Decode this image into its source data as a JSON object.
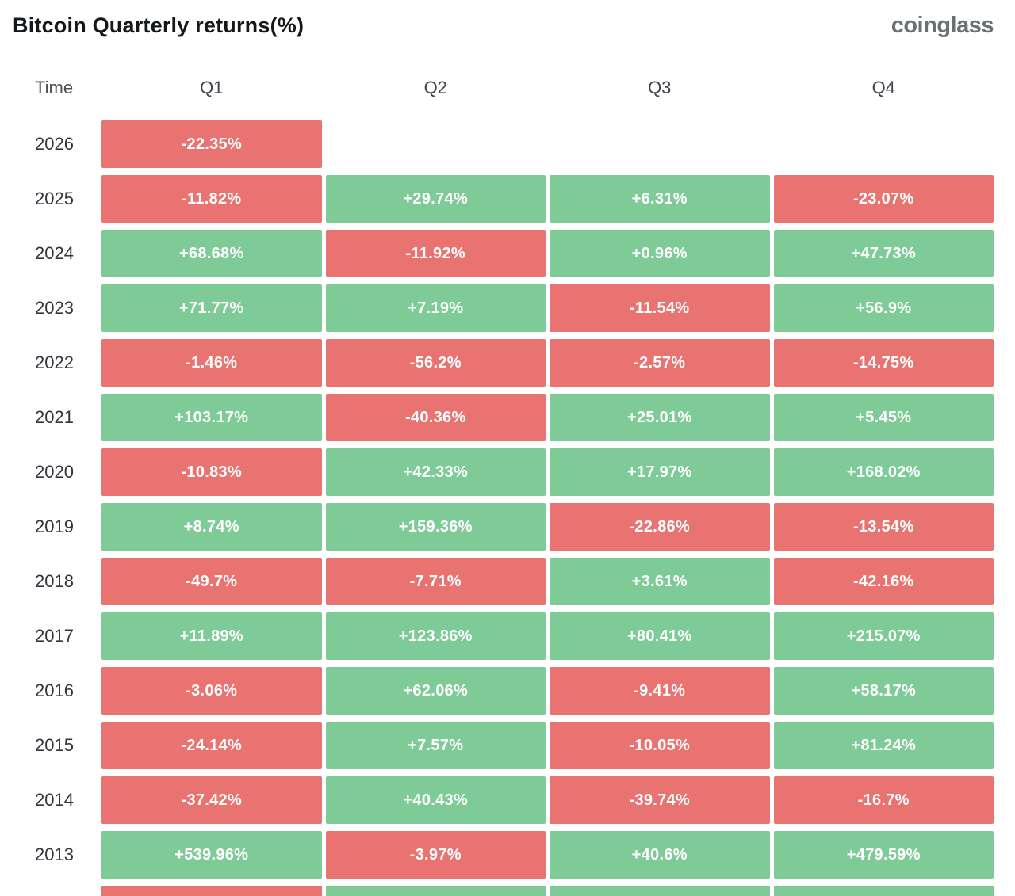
{
  "page": {
    "background": "#ffffff"
  },
  "header": {
    "title": "Bitcoin Quarterly returns(%)",
    "brand": "coinglass"
  },
  "colors": {
    "positive": "#7ecb98",
    "negative": "#e97370"
  },
  "table": {
    "columns": [
      "Time",
      "Q1",
      "Q2",
      "Q3",
      "Q4"
    ],
    "rows": [
      {
        "year": "2026",
        "cells": [
          {
            "text": "-22.35%",
            "sign": "neg"
          },
          null,
          null,
          null
        ]
      },
      {
        "year": "2025",
        "cells": [
          {
            "text": "-11.82%",
            "sign": "neg"
          },
          {
            "text": "+29.74%",
            "sign": "pos"
          },
          {
            "text": "+6.31%",
            "sign": "pos"
          },
          {
            "text": "-23.07%",
            "sign": "neg"
          }
        ]
      },
      {
        "year": "2024",
        "cells": [
          {
            "text": "+68.68%",
            "sign": "pos"
          },
          {
            "text": "-11.92%",
            "sign": "neg"
          },
          {
            "text": "+0.96%",
            "sign": "pos"
          },
          {
            "text": "+47.73%",
            "sign": "pos"
          }
        ]
      },
      {
        "year": "2023",
        "cells": [
          {
            "text": "+71.77%",
            "sign": "pos"
          },
          {
            "text": "+7.19%",
            "sign": "pos"
          },
          {
            "text": "-11.54%",
            "sign": "neg"
          },
          {
            "text": "+56.9%",
            "sign": "pos"
          }
        ]
      },
      {
        "year": "2022",
        "cells": [
          {
            "text": "-1.46%",
            "sign": "neg"
          },
          {
            "text": "-56.2%",
            "sign": "neg"
          },
          {
            "text": "-2.57%",
            "sign": "neg"
          },
          {
            "text": "-14.75%",
            "sign": "neg"
          }
        ]
      },
      {
        "year": "2021",
        "cells": [
          {
            "text": "+103.17%",
            "sign": "pos"
          },
          {
            "text": "-40.36%",
            "sign": "neg"
          },
          {
            "text": "+25.01%",
            "sign": "pos"
          },
          {
            "text": "+5.45%",
            "sign": "pos"
          }
        ]
      },
      {
        "year": "2020",
        "cells": [
          {
            "text": "-10.83%",
            "sign": "neg"
          },
          {
            "text": "+42.33%",
            "sign": "pos"
          },
          {
            "text": "+17.97%",
            "sign": "pos"
          },
          {
            "text": "+168.02%",
            "sign": "pos"
          }
        ]
      },
      {
        "year": "2019",
        "cells": [
          {
            "text": "+8.74%",
            "sign": "pos"
          },
          {
            "text": "+159.36%",
            "sign": "pos"
          },
          {
            "text": "-22.86%",
            "sign": "neg"
          },
          {
            "text": "-13.54%",
            "sign": "neg"
          }
        ]
      },
      {
        "year": "2018",
        "cells": [
          {
            "text": "-49.7%",
            "sign": "neg"
          },
          {
            "text": "-7.71%",
            "sign": "neg"
          },
          {
            "text": "+3.61%",
            "sign": "pos"
          },
          {
            "text": "-42.16%",
            "sign": "neg"
          }
        ]
      },
      {
        "year": "2017",
        "cells": [
          {
            "text": "+11.89%",
            "sign": "pos"
          },
          {
            "text": "+123.86%",
            "sign": "pos"
          },
          {
            "text": "+80.41%",
            "sign": "pos"
          },
          {
            "text": "+215.07%",
            "sign": "pos"
          }
        ]
      },
      {
        "year": "2016",
        "cells": [
          {
            "text": "-3.06%",
            "sign": "neg"
          },
          {
            "text": "+62.06%",
            "sign": "pos"
          },
          {
            "text": "-9.41%",
            "sign": "neg"
          },
          {
            "text": "+58.17%",
            "sign": "pos"
          }
        ]
      },
      {
        "year": "2015",
        "cells": [
          {
            "text": "-24.14%",
            "sign": "neg"
          },
          {
            "text": "+7.57%",
            "sign": "pos"
          },
          {
            "text": "-10.05%",
            "sign": "neg"
          },
          {
            "text": "+81.24%",
            "sign": "pos"
          }
        ]
      },
      {
        "year": "2014",
        "cells": [
          {
            "text": "-37.42%",
            "sign": "neg"
          },
          {
            "text": "+40.43%",
            "sign": "pos"
          },
          {
            "text": "-39.74%",
            "sign": "neg"
          },
          {
            "text": "-16.7%",
            "sign": "neg"
          }
        ]
      },
      {
        "year": "2013",
        "cells": [
          {
            "text": "+539.96%",
            "sign": "pos"
          },
          {
            "text": "-3.97%",
            "sign": "neg"
          },
          {
            "text": "+40.6%",
            "sign": "pos"
          },
          {
            "text": "+479.59%",
            "sign": "pos"
          }
        ]
      }
    ],
    "partial_row": {
      "year": "",
      "cells": [
        {
          "text": "",
          "sign": "neg"
        },
        {
          "text": "",
          "sign": "pos"
        },
        {
          "text": "",
          "sign": "pos"
        },
        {
          "text": "",
          "sign": "pos"
        }
      ]
    }
  },
  "chart_data": {
    "type": "heatmap",
    "title": "Bitcoin Quarterly returns(%)",
    "columns": [
      "Q1",
      "Q2",
      "Q3",
      "Q4"
    ],
    "rows": [
      "2026",
      "2025",
      "2024",
      "2023",
      "2022",
      "2021",
      "2020",
      "2019",
      "2018",
      "2017",
      "2016",
      "2015",
      "2014",
      "2013"
    ],
    "values": [
      [
        -22.35,
        null,
        null,
        null
      ],
      [
        -11.82,
        29.74,
        6.31,
        -23.07
      ],
      [
        68.68,
        -11.92,
        0.96,
        47.73
      ],
      [
        71.77,
        7.19,
        -11.54,
        56.9
      ],
      [
        -1.46,
        -56.2,
        -2.57,
        -14.75
      ],
      [
        103.17,
        -40.36,
        25.01,
        5.45
      ],
      [
        -10.83,
        42.33,
        17.97,
        168.02
      ],
      [
        8.74,
        159.36,
        -22.86,
        -13.54
      ],
      [
        -49.7,
        -7.71,
        3.61,
        -42.16
      ],
      [
        11.89,
        123.86,
        80.41,
        215.07
      ],
      [
        -3.06,
        62.06,
        -9.41,
        58.17
      ],
      [
        -24.14,
        7.57,
        -10.05,
        81.24
      ],
      [
        -37.42,
        40.43,
        -39.74,
        -16.7
      ],
      [
        539.96,
        -3.97,
        40.6,
        479.59
      ]
    ],
    "unit": "%",
    "legend": "green = positive quarterly return, red = negative quarterly return"
  }
}
